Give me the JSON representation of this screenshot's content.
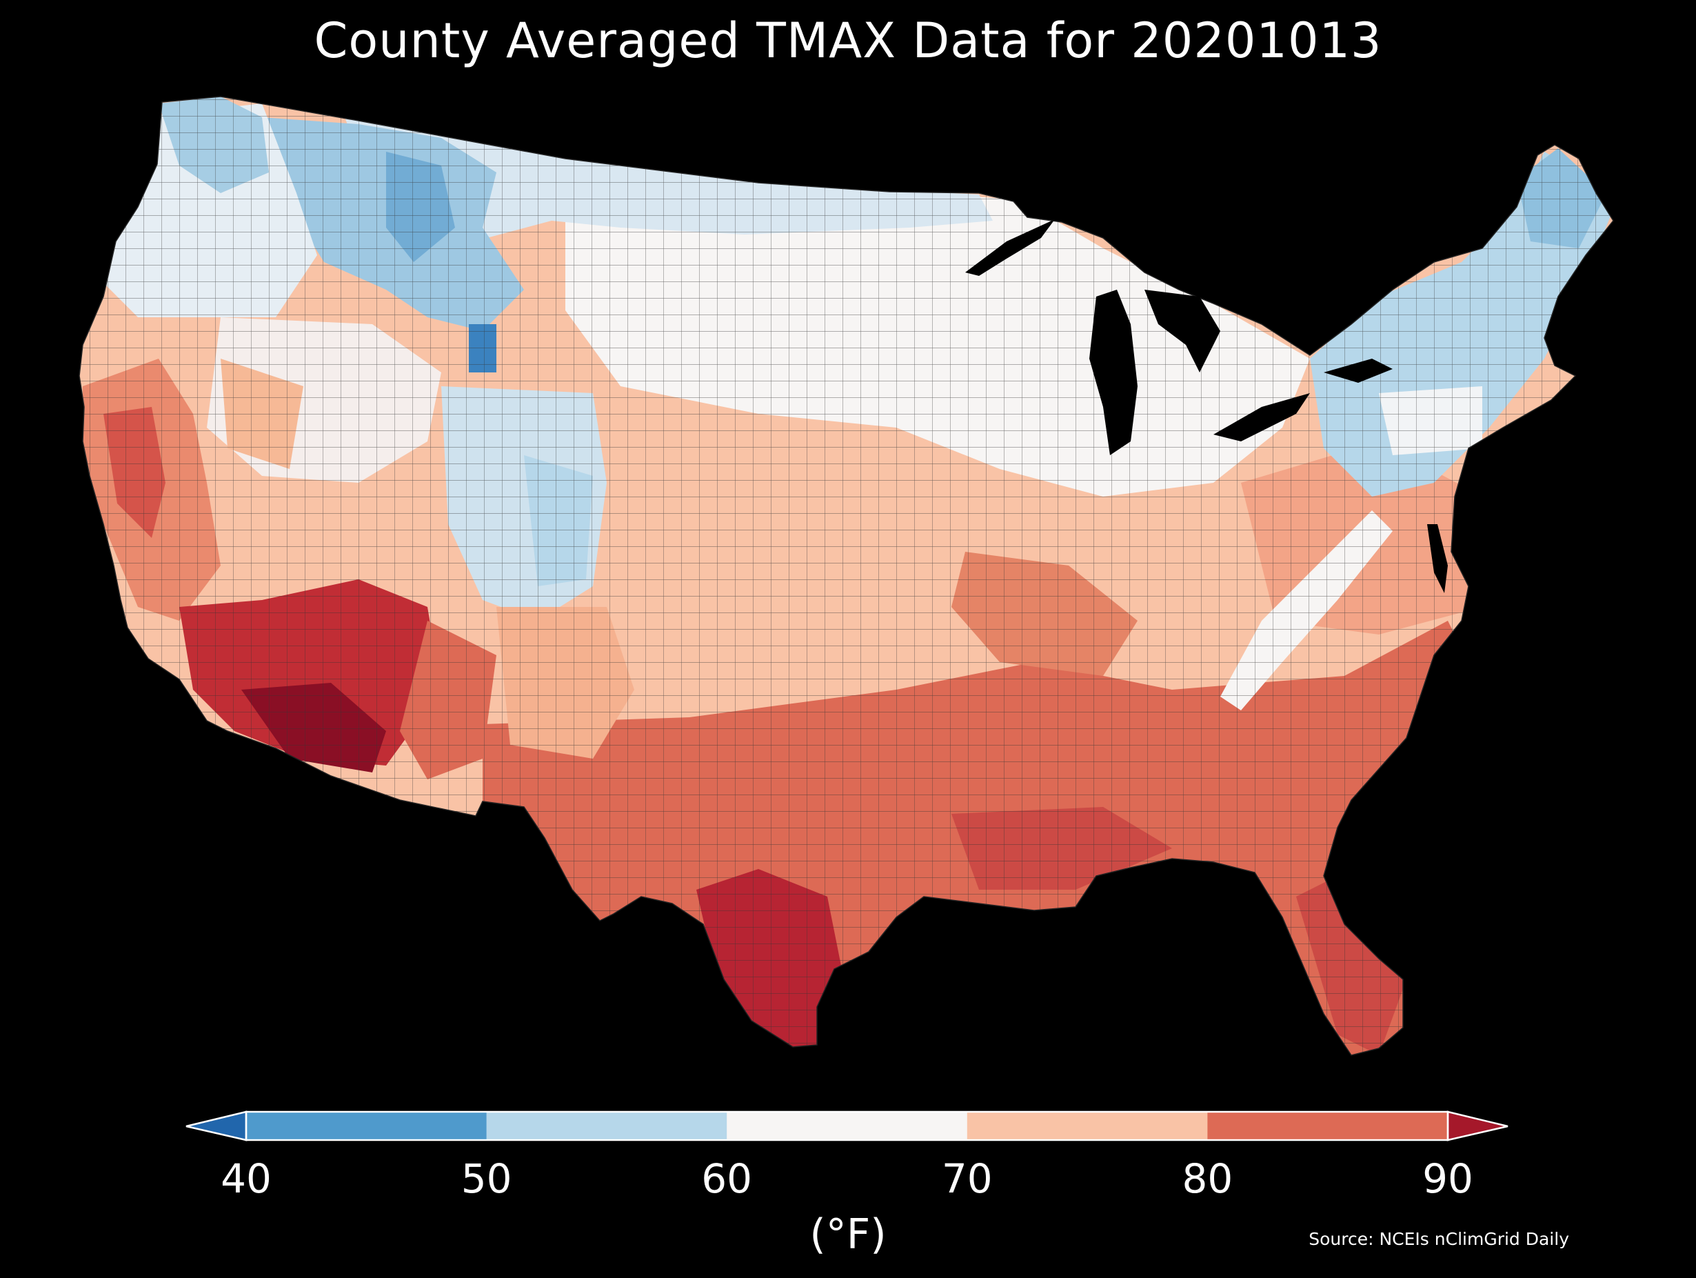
{
  "title": "County Averaged TMAX Data for 20201013",
  "colorbar": {
    "ticks": [
      "40",
      "50",
      "60",
      "70",
      "80",
      "90"
    ],
    "unit": "(°F)",
    "bins": [
      {
        "range": "<40",
        "color": "#2166ac"
      },
      {
        "range": "40-50",
        "color": "#4f9acc"
      },
      {
        "range": "50-60",
        "color": "#b6d7ea"
      },
      {
        "range": "60-70",
        "color": "#f7f5f4"
      },
      {
        "range": "70-80",
        "color": "#f9c3a6"
      },
      {
        "range": "80-90",
        "color": "#dd6a55"
      },
      {
        "range": ">90",
        "color": "#a5182a"
      }
    ]
  },
  "source": "Source: NCEIs nClimGrid Daily",
  "map_regions": {
    "pacific_northwest": "50-60",
    "northern_rockies": "40-50",
    "great_plains_north": "60-70",
    "midwest": "60-70",
    "northeast": "50-60",
    "central_plains": "70-80",
    "southeast": "80-90",
    "desert_southwest": ">90",
    "south_texas": ">90",
    "florida": "80-90"
  }
}
